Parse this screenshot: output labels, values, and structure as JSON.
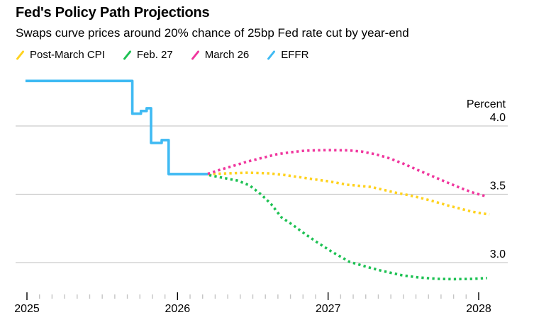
{
  "header": {
    "title": "Fed's Policy Path Projections",
    "subtitle": "Swaps curve prices around 20% chance of 25bp Fed rate cut by year-end"
  },
  "legend": [
    {
      "label": "Post-March CPI",
      "color": "#FFD21E"
    },
    {
      "label": "Feb. 27",
      "color": "#1DC153"
    },
    {
      "label": "March 26",
      "color": "#F0369E"
    },
    {
      "label": "EFFR",
      "color": "#3FBAF3"
    }
  ],
  "chart_data": {
    "type": "line",
    "unit_label": "Percent",
    "x_axis": {
      "range": [
        2024.99,
        2028.2
      ],
      "major_ticks": [
        2025,
        2026,
        2027,
        2028
      ],
      "major_tick_labels": [
        "2025",
        "2026",
        "2027",
        "2028"
      ],
      "minor_tick_interval_years": 0.0833333,
      "grid": false
    },
    "y_axis": {
      "gridlines": [
        4.0,
        3.5,
        3.0
      ],
      "gridline_labels": [
        "4.0",
        "3.5",
        "3.0"
      ],
      "range": [
        2.78,
        4.45
      ],
      "grid": true,
      "label_position": "right-above-line"
    },
    "series": [
      {
        "name": "EFFR",
        "color": "#3FBAF3",
        "style": "solid",
        "points": [
          [
            2024.99,
            4.33
          ],
          [
            2025.7,
            4.33
          ],
          [
            2025.7,
            4.09
          ],
          [
            2025.757,
            4.09
          ],
          [
            2025.757,
            4.11
          ],
          [
            2025.795,
            4.11
          ],
          [
            2025.795,
            4.13
          ],
          [
            2025.824,
            4.13
          ],
          [
            2025.824,
            3.876
          ],
          [
            2025.895,
            3.876
          ],
          [
            2025.895,
            3.897
          ],
          [
            2025.941,
            3.897
          ],
          [
            2025.941,
            3.648
          ],
          [
            2026.201,
            3.648
          ]
        ]
      },
      {
        "name": "Post-March CPI",
        "color": "#FFD21E",
        "style": "dotted",
        "points": [
          [
            2026.201,
            3.648
          ],
          [
            2026.328,
            3.653
          ],
          [
            2026.469,
            3.658
          ],
          [
            2026.611,
            3.653
          ],
          [
            2026.705,
            3.642
          ],
          [
            2026.799,
            3.627
          ],
          [
            2026.893,
            3.612
          ],
          [
            2026.997,
            3.596
          ],
          [
            2027.129,
            3.57
          ],
          [
            2027.284,
            3.554
          ],
          [
            2027.444,
            3.513
          ],
          [
            2027.52,
            3.497
          ],
          [
            2027.6,
            3.477
          ],
          [
            2027.694,
            3.451
          ],
          [
            2027.788,
            3.42
          ],
          [
            2027.882,
            3.394
          ],
          [
            2027.953,
            3.373
          ],
          [
            2028.071,
            3.352
          ]
        ]
      },
      {
        "name": "Feb. 27",
        "color": "#1DC153",
        "style": "dotted",
        "points": [
          [
            2026.21,
            3.64
          ],
          [
            2026.304,
            3.62
          ],
          [
            2026.399,
            3.6
          ],
          [
            2026.479,
            3.565
          ],
          [
            2026.554,
            3.5
          ],
          [
            2026.62,
            3.43
          ],
          [
            2026.691,
            3.33
          ],
          [
            2026.766,
            3.275
          ],
          [
            2026.846,
            3.21
          ],
          [
            2026.926,
            3.15
          ],
          [
            2027.02,
            3.083
          ],
          [
            2027.143,
            3.005
          ],
          [
            2027.27,
            2.965
          ],
          [
            2027.364,
            2.938
          ],
          [
            2027.491,
            2.907
          ],
          [
            2027.6,
            2.891
          ],
          [
            2027.727,
            2.881
          ],
          [
            2027.835,
            2.879
          ],
          [
            2027.962,
            2.881
          ],
          [
            2028.056,
            2.887
          ]
        ]
      },
      {
        "name": "March 26",
        "color": "#F0369E",
        "style": "dotted",
        "points": [
          [
            2026.201,
            3.65
          ],
          [
            2026.281,
            3.679
          ],
          [
            2026.375,
            3.71
          ],
          [
            2026.469,
            3.741
          ],
          [
            2026.564,
            3.767
          ],
          [
            2026.658,
            3.793
          ],
          [
            2026.752,
            3.808
          ],
          [
            2026.846,
            3.819
          ],
          [
            2026.987,
            3.824
          ],
          [
            2027.129,
            3.822
          ],
          [
            2027.223,
            3.813
          ],
          [
            2027.317,
            3.793
          ],
          [
            2027.411,
            3.762
          ],
          [
            2027.505,
            3.722
          ],
          [
            2027.6,
            3.675
          ],
          [
            2027.694,
            3.632
          ],
          [
            2027.788,
            3.588
          ],
          [
            2027.882,
            3.545
          ],
          [
            2027.976,
            3.507
          ],
          [
            2028.056,
            3.483
          ]
        ]
      }
    ]
  }
}
